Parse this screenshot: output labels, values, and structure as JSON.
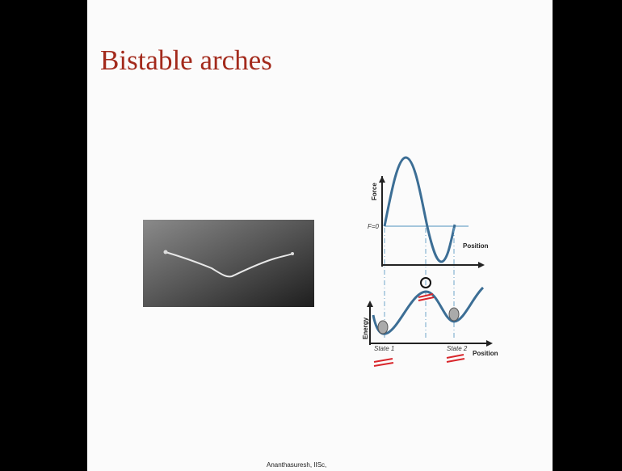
{
  "slide": {
    "title": "Bistable arches",
    "footer": "Ananthasuresh, IISc,",
    "force_plot": {
      "y_label": "Force",
      "zero_label": "F=0",
      "x_label": "Position"
    },
    "energy_plot": {
      "y_label": "Energy",
      "x_label": "Position",
      "states": [
        "State 1",
        "State 2"
      ]
    }
  }
}
